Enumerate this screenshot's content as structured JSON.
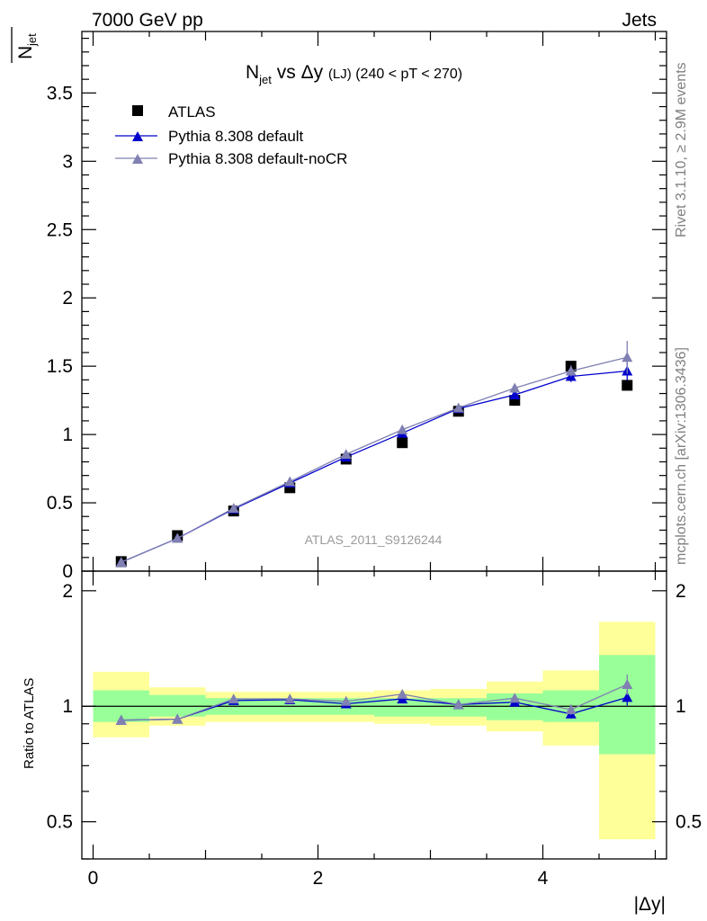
{
  "header": {
    "left": "7000 GeV pp",
    "right": "Jets",
    "title_main": "N",
    "title_sub": "jet",
    "title_mid": " vs Δy ",
    "title_small": "(LJ)",
    "title_tail": " (240 < pT < 270)",
    "yaxis_main": "N",
    "yaxis_sub": "jet",
    "watermark": "ATLAS_2011_S9126244",
    "side_top": "Rivet 3.1.10, ≥ 2.9M events",
    "side_bottom": "mcplots.cern.ch [arXiv:1306.3436]"
  },
  "colors": {
    "data": "#000000",
    "default": "#0000cc",
    "nocr": "#8080b3",
    "band_inner": "#99ff99",
    "band_outer": "#ffff99"
  },
  "chart_data": [
    {
      "type": "scatter",
      "title": "N_jet vs Δy (LJ) (240 < pT < 270)",
      "xlabel": "|Δy|",
      "ylabel": "N_jet",
      "xlim": [
        -0.1,
        5.1
      ],
      "ylim": [
        0,
        3.95
      ],
      "yticks": [
        "0",
        "0.5",
        "1",
        "1.5",
        "2",
        "2.5",
        "3",
        "3.5"
      ],
      "x": [
        0.25,
        0.75,
        1.25,
        1.75,
        2.25,
        2.75,
        3.25,
        3.75,
        4.25,
        4.75
      ],
      "series": [
        {
          "name": "ATLAS",
          "values": [
            0.07,
            0.26,
            0.44,
            0.61,
            0.82,
            0.94,
            1.17,
            1.25,
            1.5,
            1.36
          ]
        },
        {
          "name": "Pythia 8.308 default",
          "values": [
            0.065,
            0.24,
            0.455,
            0.645,
            0.835,
            1.01,
            1.19,
            1.29,
            1.425,
            1.465
          ],
          "errors": [
            0,
            0,
            0,
            0,
            0,
            0,
            0,
            0.02,
            0.04,
            0.07
          ]
        },
        {
          "name": "Pythia 8.308 default-noCR",
          "values": [
            0.065,
            0.24,
            0.46,
            0.655,
            0.855,
            1.035,
            1.195,
            1.34,
            1.465,
            1.565
          ],
          "errors": [
            0,
            0,
            0,
            0,
            0,
            0,
            0,
            0.03,
            0.04,
            0.12
          ]
        }
      ],
      "legend": "top-left"
    },
    {
      "type": "line",
      "ylabel": "Ratio to ATLAS",
      "xlabel": "|Δy|",
      "xlim": [
        -0.1,
        5.1
      ],
      "ylim": [
        0.4,
        2.25
      ],
      "yscale": "log",
      "xticks": [
        "0",
        "2",
        "4"
      ],
      "yticks": [
        "0.5",
        "1",
        "2"
      ],
      "x": [
        0.25,
        0.75,
        1.25,
        1.75,
        2.25,
        2.75,
        3.25,
        3.75,
        4.25,
        4.75
      ],
      "bins": [
        [
          0,
          0.5
        ],
        [
          0.5,
          1.0
        ],
        [
          1.0,
          1.5
        ],
        [
          1.5,
          2.0
        ],
        [
          2.0,
          2.5
        ],
        [
          2.5,
          3.0
        ],
        [
          3.0,
          3.5
        ],
        [
          3.5,
          4.0
        ],
        [
          4.0,
          4.5
        ],
        [
          4.5,
          5.0
        ]
      ],
      "band_inner": [
        [
          0.91,
          1.1
        ],
        [
          0.94,
          1.07
        ],
        [
          0.95,
          1.05
        ],
        [
          0.95,
          1.05
        ],
        [
          0.95,
          1.05
        ],
        [
          0.94,
          1.05
        ],
        [
          0.94,
          1.05
        ],
        [
          0.92,
          1.08
        ],
        [
          0.91,
          1.1
        ],
        [
          0.75,
          1.36
        ]
      ],
      "band_outer": [
        [
          0.83,
          1.23
        ],
        [
          0.89,
          1.12
        ],
        [
          0.91,
          1.09
        ],
        [
          0.91,
          1.09
        ],
        [
          0.91,
          1.09
        ],
        [
          0.9,
          1.1
        ],
        [
          0.89,
          1.11
        ],
        [
          0.86,
          1.16
        ],
        [
          0.79,
          1.24
        ],
        [
          0.45,
          1.66
        ]
      ],
      "series": [
        {
          "name": "Pythia 8.308 default",
          "values": [
            0.92,
            0.925,
            1.035,
            1.04,
            1.015,
            1.045,
            1.01,
            1.025,
            0.955,
            1.055
          ],
          "errors": [
            0,
            0,
            0,
            0,
            0,
            0,
            0,
            0.015,
            0.025,
            0.05
          ]
        },
        {
          "name": "Pythia 8.308 default-noCR",
          "values": [
            0.92,
            0.925,
            1.045,
            1.045,
            1.03,
            1.075,
            1.01,
            1.05,
            0.98,
            1.14
          ],
          "errors": [
            0,
            0,
            0,
            0,
            0,
            0,
            0,
            0.02,
            0.03,
            0.07
          ]
        }
      ]
    }
  ]
}
